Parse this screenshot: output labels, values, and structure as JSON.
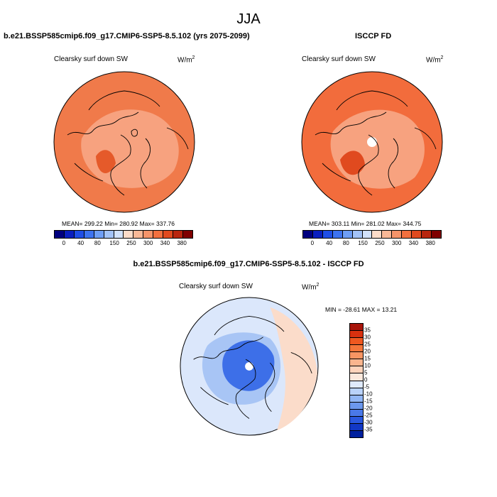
{
  "title": "JJA",
  "panels": {
    "model": {
      "title": "b.e21.BSSP585cmip6.f09_g17.CMIP6-SSP5-8.5.102 (yrs 2075-2099)",
      "variable": "Clearsky surf down SW",
      "units": "W/m",
      "units_sup": "2",
      "stats": "MEAN= 299.22  Min= 280.92  Max= 337.76"
    },
    "obs": {
      "title": "ISCCP FD",
      "variable": "Clearsky surf down SW",
      "units": "W/m",
      "units_sup": "2",
      "stats": "MEAN= 303.11  Min= 281.02  Max= 344.75"
    },
    "diff": {
      "title": "b.e21.BSSP585cmip6.f09_g17.CMIP6-SSP5-8.5.102 - ISCCP FD",
      "variable": "Clearsky surf down SW",
      "units": "W/m",
      "units_sup": "2",
      "stats": "MIN = -28.61 MAX =  13.21"
    }
  },
  "abs_colorbar": {
    "labels": [
      "0",
      "40",
      "80",
      "150",
      "250",
      "300",
      "340",
      "380"
    ],
    "colors": [
      "#00007f",
      "#0a1fbf",
      "#1f4ee6",
      "#3d73f0",
      "#6e9ef5",
      "#a3c3f7",
      "#d2e2fb",
      "#fcdcc9",
      "#f8b897",
      "#f5946a",
      "#f2703f",
      "#e04a1f",
      "#b8260f",
      "#7f0000"
    ]
  },
  "diff_colorbar": {
    "labels": [
      "35",
      "30",
      "25",
      "20",
      "15",
      "10",
      "5",
      "0",
      "-5",
      "-10",
      "-15",
      "-20",
      "-25",
      "-30",
      "-35"
    ],
    "colors": [
      "#a8150b",
      "#d8310f",
      "#ef5820",
      "#f5763a",
      "#f89563",
      "#fab58e",
      "#fdd3bb",
      "#fbe8dc",
      "#dfeafc",
      "#bad2fa",
      "#92b6f5",
      "#6c98ee",
      "#4a79e8",
      "#2a58df",
      "#1238c6",
      "#00209e"
    ]
  },
  "map_colors": {
    "model_base": "#f07a4a",
    "model_inner": "#f7a27f",
    "model_dark": "#e55a2a",
    "obs_base": "#f26c3c",
    "obs_inner": "#f7a27f",
    "obs_dark": "#e04a1f",
    "pole_hole": "#ffffff",
    "diff_base": "#dbe7fb",
    "diff_mid": "#a8c5f5",
    "diff_core": "#3d6fe8",
    "diff_warm": "#fbdcca"
  }
}
